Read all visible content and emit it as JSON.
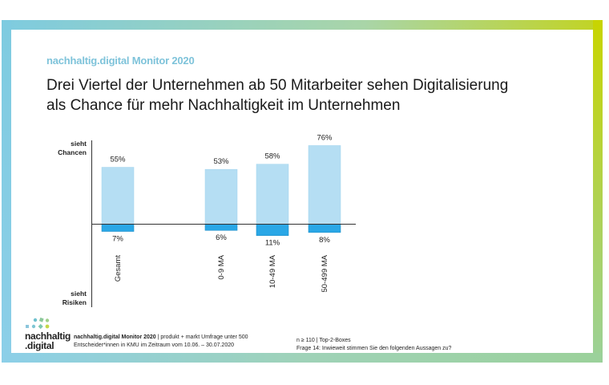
{
  "kicker": "nachhaltig.digital Monitor 2020",
  "headline_line1": "Drei Viertel der Unternehmen ab 50 Mitarbeiter sehen Digitalisierung",
  "headline_line2": "als Chance für mehr Nachhaltigkeit im Unternehmen",
  "axis": {
    "top_label_1": "sieht",
    "top_label_2": "Chancen",
    "bottom_label_1": "sieht",
    "bottom_label_2": "Risiken"
  },
  "colors": {
    "chance": "#b5def3",
    "chance_edge": "#9fd3ee",
    "risk": "#2aa7e6",
    "risk_edge": "#1f8fc8",
    "kicker": "#7ec3da"
  },
  "chart_data": {
    "type": "bar",
    "title": "Drei Viertel der Unternehmen ab 50 Mitarbeiter sehen Digitalisierung als Chance für mehr Nachhaltigkeit im Unternehmen",
    "categories": [
      "Gesamt",
      "0-9 MA",
      "10-49 MA",
      "50-499 MA"
    ],
    "series": [
      {
        "name": "sieht Chancen",
        "values": [
          55,
          53,
          58,
          76
        ],
        "labels": [
          "55%",
          "53%",
          "58%",
          "76%"
        ]
      },
      {
        "name": "sieht Risiken",
        "values": [
          -7,
          -6,
          -11,
          -8
        ],
        "labels": [
          "7%",
          "6%",
          "11%",
          "8%"
        ]
      }
    ],
    "xlabel": "",
    "ylabel_top": "sieht Chancen",
    "ylabel_bottom": "sieht Risiken",
    "ylim": [
      -80,
      80
    ],
    "grid": false,
    "legend": "none"
  },
  "logo": {
    "line1": "nachhaltig",
    "line2": ".digital"
  },
  "footer": {
    "source_bold": "nachhaltig.digital Monitor 2020",
    "source_rest": " | produkt + markt Umfrage unter 500",
    "source_line2": "Entscheider*innen in KMU im Zeitraum vom 10.06. – 30.07.2020",
    "n_line": "n ≥ 110 | Top-2-Boxes",
    "question": "Frage 14: Inwieweit stimmen Sie den folgenden Aussagen zu?"
  }
}
